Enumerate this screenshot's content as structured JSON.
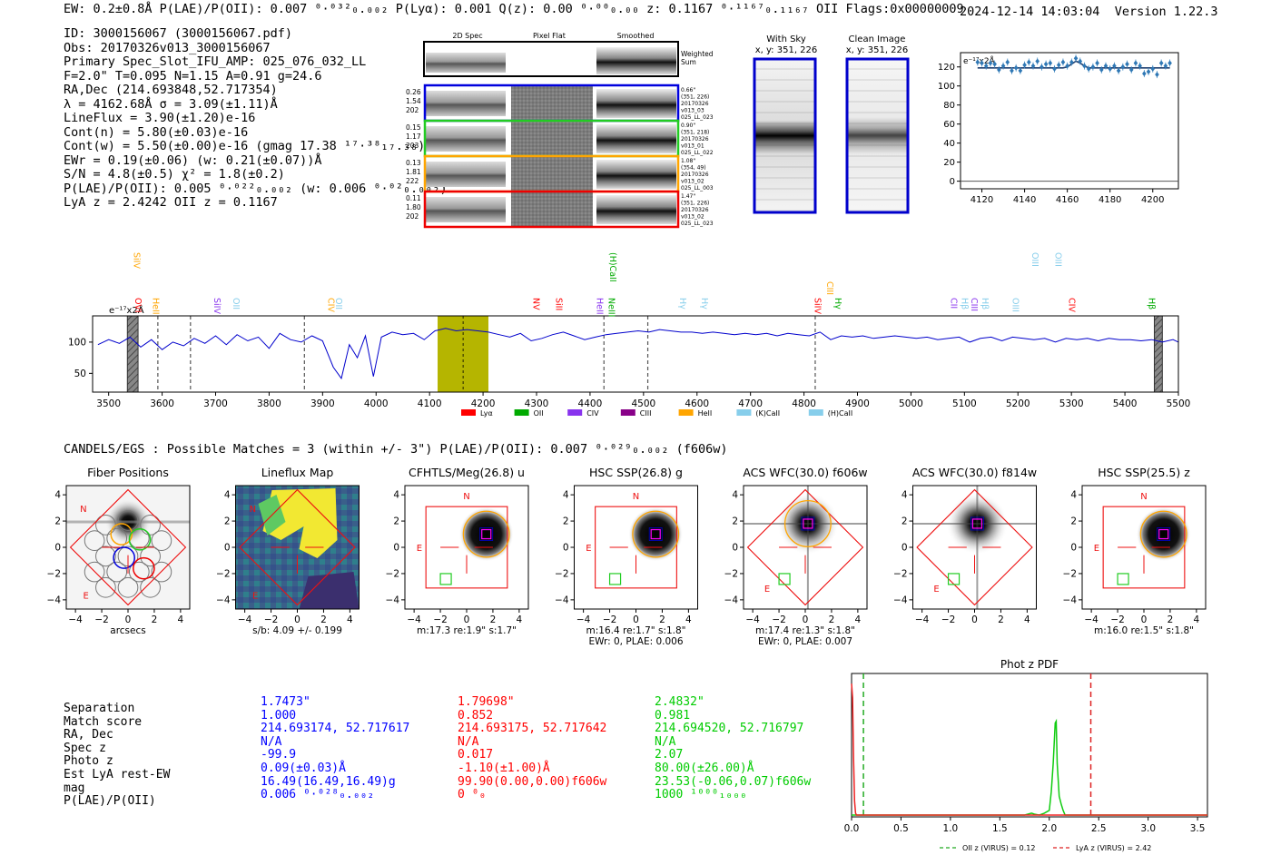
{
  "header": {
    "line": "EW: 0.2±0.8Å  P(LAE)/P(OII): 0.007 ⁰·⁰³²₀.₀₀₂  P(Lyα): 0.001  Q(z): 0.00 ⁰·⁰⁰₀.₀₀  z: 0.1167 ⁰·¹¹⁶⁷₀.₁₁₆₇ OII   Flags:0x00000009",
    "datetime": "2024-12-14 14:03:04",
    "version": "Version 1.22.3"
  },
  "info_lines": [
    "ID: 3000156067 (3000156067.pdf)",
    "Obs: 20170326v013_3000156067",
    "Primary Spec_Slot_IFU_AMP: 025_076_032_LL",
    "F=2.0\"  T=0.095  N=1.15  A=0.91  g=24.6",
    "RA,Dec (214.693848,52.717354)",
    "λ = 4162.68Å  σ = 3.09(±1.11)Å",
    "LineFlux = 3.90(±1.20)e-16",
    "Cont(n) = 5.80(±0.03)e-16",
    "Cont(w) = 5.50(±0.00)e-16 (gmag 17.38 ¹⁷·³⁸₁₇.₃₈)",
    "EWr = 0.19(±0.06) (w: 0.21(±0.07))Å",
    "S/N = 4.8(±0.5)  χ² = 1.8(±0.2)",
    "P(LAE)/P(OII): 0.005 ⁰·⁰²²₀.₀₀₂ (w: 0.006 ⁰·⁰²₀.₀₀₂)",
    "LyA z = 2.4242  OII z = 0.1167"
  ],
  "cutout_panel": {
    "col_titles": [
      "2D Spec",
      "Pixel Flat",
      "Smoothed"
    ],
    "weighted_label": "Weighted Sum",
    "rows": [
      {
        "nums": [
          "0.26",
          "1.54",
          "202"
        ],
        "meta": [
          "0.66\"",
          "(351, 226)",
          "20170326",
          "v013_03",
          "025_LL_023"
        ],
        "color": "#0000dd"
      },
      {
        "nums": [
          "0.15",
          "1.17",
          "203"
        ],
        "meta": [
          "0.90\"",
          "(351, 218)",
          "20170326",
          "v013_01",
          "025_LL_022"
        ],
        "color": "#22cc22"
      },
      {
        "nums": [
          "0.13",
          "1.81",
          "222"
        ],
        "meta": [
          "1.08\"",
          "(354, 49)",
          "20170326",
          "v013_02",
          "025_LL_003"
        ],
        "color": "#ffa500"
      },
      {
        "nums": [
          "0.11",
          "1.80",
          "202"
        ],
        "meta": [
          "1.47\"",
          "(351, 226)",
          "20170326",
          "v013_02",
          "025_LL_023"
        ],
        "color": "#ee0000"
      }
    ]
  },
  "sky_panels": [
    {
      "title": "With Sky",
      "subtitle": "x, y: 351, 226"
    },
    {
      "title": "Clean Image",
      "subtitle": "x, y: 351, 226"
    }
  ],
  "zoom_chart": {
    "type": "scatter",
    "unit_label": "e⁻¹⁷x2Å",
    "x": [
      4118,
      4120,
      4122,
      4124,
      4126,
      4128,
      4130,
      4132,
      4134,
      4136,
      4138,
      4140,
      4142,
      4144,
      4146,
      4148,
      4150,
      4152,
      4154,
      4156,
      4158,
      4160,
      4162,
      4164,
      4166,
      4168,
      4170,
      4172,
      4174,
      4176,
      4178,
      4180,
      4182,
      4184,
      4186,
      4188,
      4190,
      4192,
      4194,
      4196,
      4198,
      4200,
      4202,
      4204,
      4206,
      4208
    ],
    "y": [
      125,
      124,
      121,
      124,
      123,
      117,
      121,
      125,
      116,
      119,
      116,
      122,
      125,
      121,
      126,
      120,
      123,
      124,
      118,
      122,
      125,
      121,
      125,
      129,
      126,
      121,
      118,
      120,
      124,
      117,
      121,
      118,
      121,
      116,
      120,
      123,
      117,
      124,
      121,
      113,
      115,
      118,
      112,
      124,
      121,
      124
    ],
    "fit_y": [
      119,
      119,
      119,
      119,
      119,
      119,
      119,
      119,
      119,
      119,
      119,
      119,
      119,
      119,
      119,
      119,
      119,
      119,
      119,
      119,
      119,
      120,
      123,
      126,
      124,
      121,
      119,
      119,
      119,
      119,
      119,
      119,
      119,
      119,
      119,
      119,
      119,
      119,
      119,
      119,
      119,
      119,
      119,
      119,
      119,
      119
    ],
    "xlim": [
      4110,
      4212
    ],
    "ylim": [
      -8,
      135
    ],
    "xticks": [
      "4120",
      "4140",
      "4160",
      "4180",
      "4200"
    ],
    "yticks": [
      "0",
      "20",
      "40",
      "60",
      "80",
      "100",
      "120"
    ]
  },
  "full_spectrum": {
    "type": "line",
    "unit_label": "e⁻¹⁷x2Å",
    "xlim": [
      3470,
      5500
    ],
    "ylim": [
      20,
      142
    ],
    "xticks": [
      "3500",
      "3600",
      "3700",
      "3800",
      "3900",
      "4000",
      "4100",
      "4200",
      "4300",
      "4400",
      "4500",
      "4600",
      "4700",
      "4800",
      "4900",
      "5000",
      "5100",
      "5200",
      "5300",
      "5400",
      "5500"
    ],
    "yticks": [
      "50",
      "100"
    ],
    "highlight_range": [
      4115,
      4210
    ],
    "line_center": 4162.7,
    "dashed_lines": [
      3592,
      3653,
      3866,
      4426,
      4508,
      4821
    ],
    "hatched_ranges": [
      [
        3535,
        3555
      ],
      [
        5455,
        5470
      ]
    ],
    "spectrum": {
      "x": [
        3480,
        3500,
        3520,
        3540,
        3560,
        3580,
        3600,
        3620,
        3640,
        3660,
        3680,
        3700,
        3720,
        3740,
        3760,
        3780,
        3800,
        3820,
        3840,
        3860,
        3880,
        3900,
        3920,
        3935,
        3950,
        3965,
        3980,
        3995,
        4010,
        4030,
        4050,
        4070,
        4090,
        4110,
        4130,
        4150,
        4170,
        4190,
        4210,
        4230,
        4250,
        4270,
        4290,
        4310,
        4330,
        4350,
        4370,
        4390,
        4410,
        4430,
        4450,
        4470,
        4490,
        4510,
        4530,
        4550,
        4570,
        4590,
        4610,
        4630,
        4650,
        4670,
        4690,
        4710,
        4730,
        4750,
        4770,
        4790,
        4810,
        4830,
        4850,
        4870,
        4890,
        4910,
        4930,
        4950,
        4970,
        4990,
        5010,
        5030,
        5050,
        5070,
        5090,
        5110,
        5130,
        5150,
        5170,
        5190,
        5210,
        5230,
        5250,
        5270,
        5290,
        5310,
        5330,
        5350,
        5370,
        5390,
        5410,
        5430,
        5450,
        5470,
        5490,
        5500
      ],
      "y": [
        96,
        104,
        98,
        108,
        92,
        104,
        88,
        100,
        94,
        106,
        98,
        110,
        96,
        112,
        102,
        108,
        90,
        114,
        104,
        100,
        110,
        102,
        60,
        42,
        96,
        75,
        110,
        45,
        108,
        116,
        112,
        114,
        104,
        118,
        122,
        118,
        120,
        118,
        116,
        112,
        108,
        114,
        102,
        106,
        112,
        116,
        110,
        104,
        108,
        112,
        114,
        116,
        118,
        116,
        120,
        118,
        116,
        116,
        114,
        116,
        114,
        112,
        114,
        112,
        114,
        110,
        114,
        112,
        110,
        116,
        104,
        110,
        108,
        110,
        106,
        108,
        110,
        108,
        106,
        108,
        104,
        106,
        108,
        100,
        106,
        108,
        102,
        108,
        106,
        104,
        106,
        100,
        106,
        104,
        106,
        102,
        106,
        104,
        104,
        102,
        104,
        100,
        104,
        100
      ]
    },
    "markers": [
      {
        "name": "SiIV",
        "x": 3542,
        "color": "#ffa500",
        "row": 0
      },
      {
        "name": "OVI",
        "x": 3545,
        "color": "#ff0000",
        "row": 2
      },
      {
        "name": "HeII",
        "x": 3578,
        "color": "#ffa500",
        "row": 2
      },
      {
        "name": "SiIV",
        "x": 3692,
        "color": "#8833ee",
        "row": 2
      },
      {
        "name": "OII",
        "x": 3728,
        "color": "#87ceeb",
        "row": 2
      },
      {
        "name": "CIV",
        "x": 3905,
        "color": "#ffa500",
        "row": 2
      },
      {
        "name": "OII",
        "x": 3920,
        "color": "#87ceeb",
        "row": 2
      },
      {
        "name": "(H)CaII",
        "x": 4432,
        "color": "#00aa00",
        "row": 0
      },
      {
        "name": "NV",
        "x": 4289,
        "color": "#ff0000",
        "row": 2
      },
      {
        "name": "SiII",
        "x": 4331,
        "color": "#ff0000",
        "row": 2
      },
      {
        "name": "HeII",
        "x": 4408,
        "color": "#8833ee",
        "row": 2
      },
      {
        "name": "NeIII",
        "x": 4430,
        "color": "#00aa00",
        "row": 2
      },
      {
        "name": "Hγ",
        "x": 4563,
        "color": "#87ceeb",
        "row": 2
      },
      {
        "name": "Hγ",
        "x": 4604,
        "color": "#87ceeb",
        "row": 2
      },
      {
        "name": "CIII",
        "x": 4838,
        "color": "#ffa500",
        "row": 1
      },
      {
        "name": "SiIV",
        "x": 4815,
        "color": "#ff0000",
        "row": 2
      },
      {
        "name": "Hγ",
        "x": 4853,
        "color": "#00aa00",
        "row": 2
      },
      {
        "name": "CII",
        "x": 5070,
        "color": "#8833ee",
        "row": 2
      },
      {
        "name": "Hβ",
        "x": 5090,
        "color": "#87ceeb",
        "row": 2
      },
      {
        "name": "CIII",
        "x": 5108,
        "color": "#8833ee",
        "row": 2
      },
      {
        "name": "Hβ",
        "x": 5128,
        "color": "#87ceeb",
        "row": 2
      },
      {
        "name": "OIII",
        "x": 5185,
        "color": "#87ceeb",
        "row": 2
      },
      {
        "name": "OIII",
        "x": 5222,
        "color": "#87ceeb",
        "row": 0
      },
      {
        "name": "OIII",
        "x": 5265,
        "color": "#87ceeb",
        "row": 0
      },
      {
        "name": "CIV",
        "x": 5290,
        "color": "#ff0000",
        "row": 2
      },
      {
        "name": "Hβ",
        "x": 5440,
        "color": "#00aa00",
        "row": 2
      }
    ],
    "legend": [
      {
        "label": "Lyα",
        "color": "#ff0000"
      },
      {
        "label": "OII",
        "color": "#00aa00"
      },
      {
        "label": "CIV",
        "color": "#8833ee"
      },
      {
        "label": "CIII",
        "color": "#880088"
      },
      {
        "label": "HeII",
        "color": "#ffa500"
      },
      {
        "label": "(K)CaII",
        "color": "#87ceeb"
      },
      {
        "label": "(H)CaII",
        "color": "#87ceeb"
      }
    ]
  },
  "candels_title": "CANDELS/EGS : Possible Matches = 3 (within +/- 3\")  P(LAE)/P(OII): 0.007 ⁰·⁰²⁹₀.₀₀₂ (f606w)",
  "stamps": [
    {
      "title": "Fiber Positions",
      "caption1": "arcsecs",
      "caption2": "",
      "kind": "fiber"
    },
    {
      "title": "Lineflux Map",
      "caption1": "s/b: 4.09 +/- 0.199",
      "caption2": "",
      "kind": "lineflux"
    },
    {
      "title": "CFHTLS/Meg(26.8) u",
      "caption1": "m:17.3  re:1.9\"  s:1.7\"",
      "caption2": "",
      "kind": "blob"
    },
    {
      "title": "HSC SSP(26.8) g",
      "caption1": "m:16.4  re:1.7\"  s:1.8\"",
      "caption2": "EWr: 0, PLAE: 0.006",
      "kind": "blob"
    },
    {
      "title": "ACS WFC(30.0) f606w",
      "caption1": "m:17.4  re:1.3\"  s:1.8\"",
      "caption2": "EWr: 0, PLAE: 0.007",
      "kind": "star"
    },
    {
      "title": "ACS WFC(30.0) f814w",
      "caption1": "",
      "caption2": "",
      "kind": "star2"
    },
    {
      "title": "HSC SSP(25.5) z",
      "caption1": "m:16.0  re:1.5\"  s:1.8\"",
      "caption2": "",
      "kind": "blob"
    }
  ],
  "stamp_ticks": [
    "−4",
    "−2",
    "0",
    "2",
    "4"
  ],
  "stamp_yticks": [
    "4",
    "2",
    "0",
    "−2",
    "−4"
  ],
  "compare": {
    "labels": [
      "Separation",
      "Match score",
      "RA, Dec",
      "Spec z",
      "Photo z",
      "Est LyA rest-EW",
      "mag",
      "P(LAE)/P(OII)"
    ],
    "columns": [
      {
        "color": "#0000ff",
        "values": [
          "1.7473\"",
          "1.000",
          "214.693174, 52.717617",
          "N/A",
          "-99.9",
          "0.09(±0.03)Å",
          "16.49(16.49,16.49)g",
          "0.006 ⁰·⁰²⁸₀.₀₀₂"
        ]
      },
      {
        "color": "#ff0000",
        "values": [
          "1.79698\"",
          "0.852",
          "214.693175, 52.717642",
          "N/A",
          "0.017",
          "-1.10(±1.00)Å",
          "99.90(0.00,0.00)f606w",
          "0 ⁰₀"
        ]
      },
      {
        "color": "#00cc00",
        "values": [
          "2.4832\"",
          "0.981",
          "214.694520, 52.716797",
          "N/A",
          "2.07",
          "80.00(±26.00)Å",
          "23.53(-0.06,0.07)f606w",
          "1000 ¹⁰⁰⁰₁₀₀₀"
        ]
      }
    ]
  },
  "photoz": {
    "type": "line",
    "title": "Phot z PDF",
    "xlim": [
      0.0,
      3.6
    ],
    "xticks": [
      "0.0",
      "0.5",
      "1.0",
      "1.5",
      "2.0",
      "2.5",
      "3.0",
      "3.5"
    ],
    "oii_z": 0.12,
    "lya_z": 2.42,
    "legend_oii": "OII z (VIRUS) = 0.12",
    "legend_lya": "LyA z (VIRUS) = 2.42",
    "green_pdf": {
      "x": [
        0.0,
        0.5,
        1.0,
        1.5,
        1.75,
        1.82,
        1.85,
        1.9,
        1.95,
        2.0,
        2.02,
        2.04,
        2.06,
        2.07,
        2.08,
        2.1,
        2.12,
        2.14,
        2.16,
        2.2,
        2.5,
        3.0,
        3.6
      ],
      "y": [
        0,
        0,
        0,
        0,
        0,
        0.02,
        0.01,
        0.0,
        0.02,
        0.05,
        0.25,
        0.55,
        0.98,
        1.0,
        0.55,
        0.2,
        0.12,
        0.05,
        0.0,
        0,
        0,
        0,
        0
      ]
    },
    "red_pdf": {
      "x": [
        0.0,
        0.01,
        0.02,
        0.03,
        0.04,
        0.05,
        0.08,
        3.6
      ],
      "y": [
        1.4,
        1.25,
        0.6,
        0.15,
        0.02,
        0,
        0,
        0
      ]
    }
  },
  "colors": {
    "blue": "#0000ff",
    "red": "#ff0000",
    "green": "#00cc00",
    "spectrum": "#0000cc",
    "highlight": "#b5b500",
    "orange": "#ffa500"
  }
}
